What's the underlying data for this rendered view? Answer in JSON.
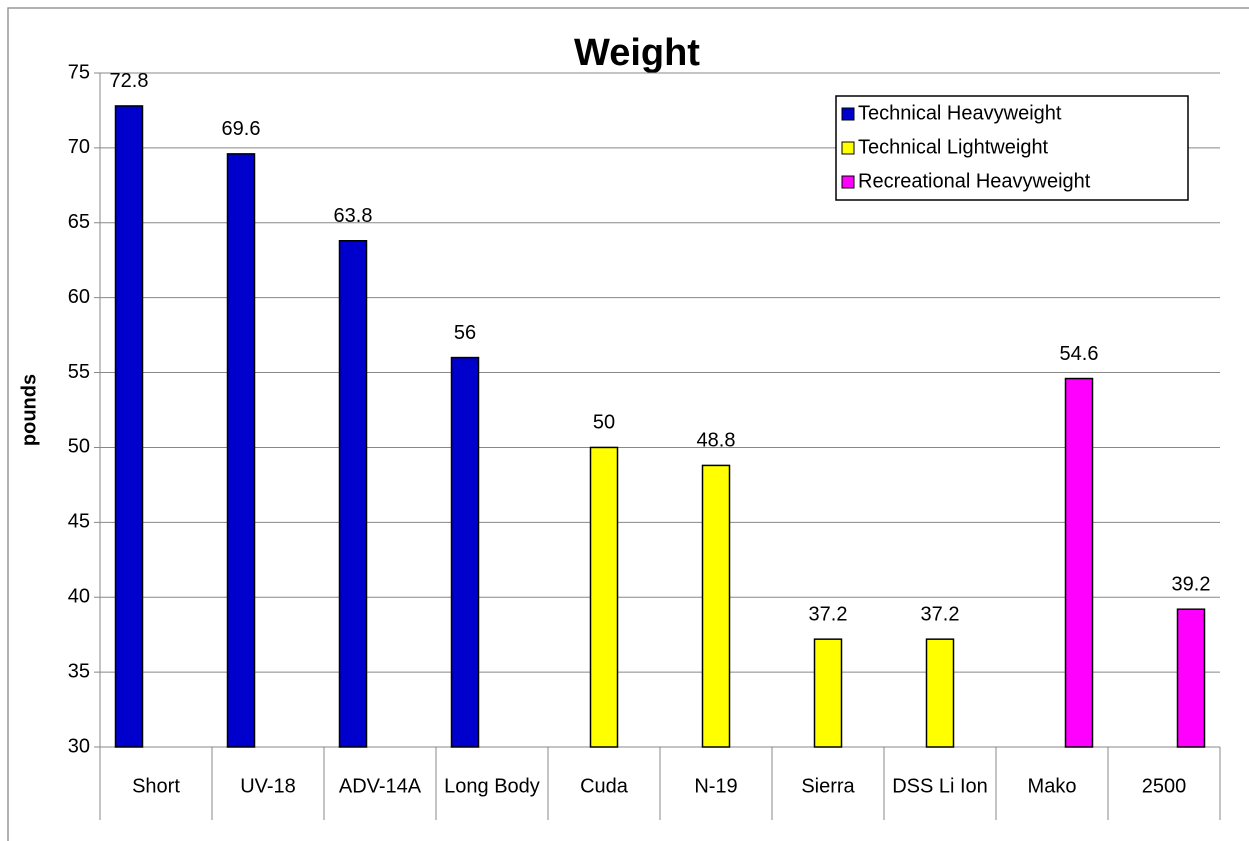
{
  "chart_data": {
    "type": "bar",
    "title": "Weight",
    "y_label": "pounds",
    "categories": [
      "Short",
      "UV-18",
      "ADV-14A",
      "Long Body",
      "Cuda",
      "N-19",
      "Sierra",
      "DSS Li Ion",
      "Mako",
      "2500"
    ],
    "series": [
      {
        "name": "Technical Heavyweight",
        "color": "#0000cc",
        "values": [
          72.8,
          69.6,
          63.8,
          56,
          null,
          null,
          null,
          null,
          null,
          null
        ]
      },
      {
        "name": "Technical Lightweight",
        "color": "#ffff00",
        "values": [
          null,
          null,
          null,
          null,
          50,
          48.8,
          37.2,
          37.2,
          null,
          null
        ]
      },
      {
        "name": "Recreational Heavyweight",
        "color": "#ff00ff",
        "values": [
          null,
          null,
          null,
          null,
          null,
          null,
          null,
          null,
          54.6,
          39.2
        ]
      }
    ],
    "ylim": [
      30,
      75
    ],
    "yticks": [
      30,
      35,
      40,
      45,
      50,
      55,
      60,
      65,
      70,
      75
    ],
    "grid": true,
    "legend": "upper right"
  }
}
